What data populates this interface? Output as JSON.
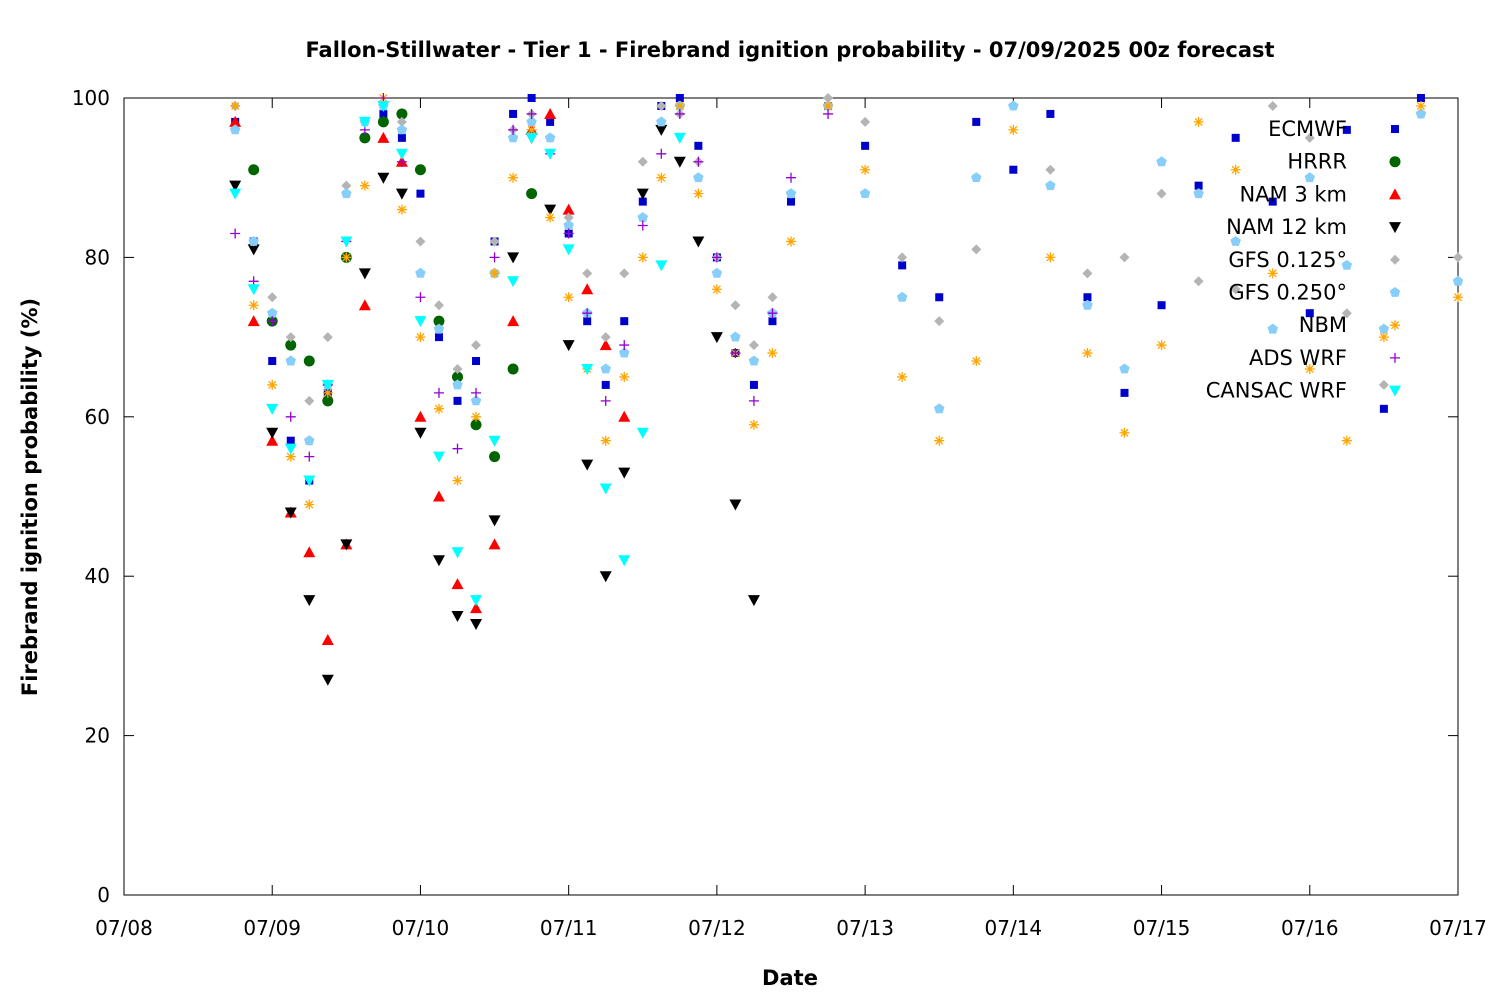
{
  "chart_data": {
    "type": "scatter",
    "title": "Fallon-Stillwater - Tier 1 - Firebrand ignition probability - 07/09/2025 00z forecast",
    "xlabel": "Date",
    "ylabel": "Firebrand ignition probability (%)",
    "x_start": "2025-07-08T00:00",
    "xlim": [
      "07/08",
      "07/17"
    ],
    "ylim": [
      0,
      100
    ],
    "x_tick_labels": [
      "07/08",
      "07/09",
      "07/10",
      "07/11",
      "07/12",
      "07/13",
      "07/14",
      "07/15",
      "07/16",
      "07/17"
    ],
    "y_tick_labels": [
      "0",
      "20",
      "40",
      "60",
      "80",
      "100"
    ],
    "grid": false,
    "legend_position": "top-right",
    "series": [
      {
        "name": "ECMWF",
        "color": "#0000cc",
        "marker": "square",
        "x": [
          "07/08 18:00",
          "07/08 21:00",
          "07/09 00:00",
          "07/09 03:00",
          "07/09 06:00",
          "07/09 09:00",
          "07/09 12:00",
          "07/09 15:00",
          "07/09 18:00",
          "07/09 21:00",
          "07/10 00:00",
          "07/10 03:00",
          "07/10 06:00",
          "07/10 09:00",
          "07/10 12:00",
          "07/10 15:00",
          "07/10 18:00",
          "07/10 21:00",
          "07/11 00:00",
          "07/11 03:00",
          "07/11 06:00",
          "07/11 09:00",
          "07/11 12:00",
          "07/11 15:00",
          "07/11 18:00",
          "07/11 21:00",
          "07/12 00:00",
          "07/12 03:00",
          "07/12 06:00",
          "07/12 09:00",
          "07/12 12:00",
          "07/12 18:00",
          "07/13 00:00",
          "07/13 06:00",
          "07/13 12:00",
          "07/13 18:00",
          "07/14 00:00",
          "07/14 06:00",
          "07/14 12:00",
          "07/14 18:00",
          "07/15 00:00",
          "07/15 06:00",
          "07/15 12:00",
          "07/15 18:00",
          "07/16 00:00",
          "07/16 06:00",
          "07/16 12:00",
          "07/16 18:00"
        ],
        "y": [
          97,
          82,
          67,
          57,
          52,
          63,
          80,
          95,
          98,
          95,
          88,
          70,
          62,
          67,
          82,
          98,
          100,
          97,
          83,
          72,
          64,
          72,
          87,
          99,
          100,
          94,
          80,
          68,
          64,
          72,
          87,
          99,
          94,
          79,
          75,
          97,
          91,
          98,
          75,
          63,
          74,
          89,
          95,
          87,
          73,
          96,
          61,
          100
        ]
      },
      {
        "name": "HRRR",
        "color": "#006400",
        "marker": "circle",
        "x": [
          "07/08 21:00",
          "07/09 00:00",
          "07/09 03:00",
          "07/09 06:00",
          "07/09 09:00",
          "07/09 12:00",
          "07/09 15:00",
          "07/09 18:00",
          "07/09 21:00",
          "07/10 00:00",
          "07/10 03:00",
          "07/10 06:00",
          "07/10 09:00",
          "07/10 12:00",
          "07/10 15:00",
          "07/10 18:00"
        ],
        "y": [
          91,
          72,
          69,
          67,
          62,
          80,
          95,
          97,
          98,
          91,
          72,
          65,
          59,
          55,
          66,
          88
        ]
      },
      {
        "name": "NAM 3 km",
        "color": "#ff0000",
        "marker": "triangle-up",
        "x": [
          "07/08 18:00",
          "07/08 21:00",
          "07/09 00:00",
          "07/09 03:00",
          "07/09 06:00",
          "07/09 09:00",
          "07/09 12:00",
          "07/09 15:00",
          "07/09 18:00",
          "07/09 21:00",
          "07/10 00:00",
          "07/10 03:00",
          "07/10 06:00",
          "07/10 09:00",
          "07/10 12:00",
          "07/10 15:00",
          "07/10 18:00",
          "07/10 21:00",
          "07/11 00:00",
          "07/11 03:00",
          "07/11 06:00",
          "07/11 09:00"
        ],
        "y": [
          97,
          72,
          57,
          48,
          43,
          32,
          44,
          74,
          95,
          92,
          60,
          50,
          39,
          36,
          44,
          72,
          96,
          98,
          86,
          76,
          69,
          60
        ]
      },
      {
        "name": "NAM 12 km",
        "color": "#000000",
        "marker": "triangle-down",
        "x": [
          "07/08 18:00",
          "07/08 21:00",
          "07/09 00:00",
          "07/09 03:00",
          "07/09 06:00",
          "07/09 09:00",
          "07/09 12:00",
          "07/09 15:00",
          "07/09 18:00",
          "07/09 21:00",
          "07/10 00:00",
          "07/10 03:00",
          "07/10 06:00",
          "07/10 09:00",
          "07/10 12:00",
          "07/10 15:00",
          "07/10 18:00",
          "07/10 21:00",
          "07/11 00:00",
          "07/11 03:00",
          "07/11 06:00",
          "07/11 09:00",
          "07/11 12:00",
          "07/11 15:00",
          "07/11 18:00",
          "07/11 21:00",
          "07/12 00:00",
          "07/12 03:00",
          "07/12 06:00"
        ],
        "y": [
          89,
          81,
          58,
          48,
          37,
          27,
          44,
          78,
          90,
          88,
          58,
          42,
          35,
          34,
          47,
          80,
          95,
          86,
          69,
          54,
          40,
          53,
          88,
          96,
          92,
          82,
          70,
          49,
          37
        ]
      },
      {
        "name": "GFS 0.125°",
        "color": "#b4b4b4",
        "marker": "diamond",
        "x": [
          "07/08 18:00",
          "07/08 21:00",
          "07/09 00:00",
          "07/09 03:00",
          "07/09 06:00",
          "07/09 09:00",
          "07/09 12:00",
          "07/09 15:00",
          "07/09 18:00",
          "07/09 21:00",
          "07/10 00:00",
          "07/10 03:00",
          "07/10 06:00",
          "07/10 09:00",
          "07/10 12:00",
          "07/10 15:00",
          "07/10 18:00",
          "07/10 21:00",
          "07/11 00:00",
          "07/11 03:00",
          "07/11 06:00",
          "07/11 09:00",
          "07/11 12:00",
          "07/11 15:00",
          "07/11 18:00",
          "07/11 21:00",
          "07/12 00:00",
          "07/12 03:00",
          "07/12 06:00",
          "07/12 09:00",
          "07/12 12:00",
          "07/12 18:00",
          "07/13 00:00",
          "07/13 06:00",
          "07/13 12:00",
          "07/13 18:00",
          "07/14 00:00",
          "07/14 06:00",
          "07/14 12:00",
          "07/14 18:00",
          "07/15 00:00",
          "07/15 06:00",
          "07/15 12:00",
          "07/15 18:00",
          "07/16 00:00",
          "07/16 06:00",
          "07/16 12:00",
          "07/16 18:00",
          "07/17 00:00"
        ],
        "y": [
          99,
          82,
          75,
          70,
          62,
          70,
          89,
          97,
          99,
          97,
          82,
          74,
          66,
          69,
          82,
          96,
          98,
          95,
          85,
          78,
          70,
          78,
          92,
          99,
          98,
          92,
          80,
          74,
          69,
          75,
          88,
          100,
          97,
          80,
          72,
          81,
          99,
          91,
          78,
          80,
          88,
          77,
          76,
          99,
          95,
          73,
          64,
          98,
          80
        ]
      },
      {
        "name": "GFS 0.250°",
        "color": "#87cefa",
        "marker": "pentagon",
        "x": [
          "07/08 18:00",
          "07/08 21:00",
          "07/09 00:00",
          "07/09 03:00",
          "07/09 06:00",
          "07/09 09:00",
          "07/09 12:00",
          "07/09 15:00",
          "07/09 18:00",
          "07/09 21:00",
          "07/10 00:00",
          "07/10 03:00",
          "07/10 06:00",
          "07/10 09:00",
          "07/10 12:00",
          "07/10 15:00",
          "07/10 18:00",
          "07/10 21:00",
          "07/11 00:00",
          "07/11 03:00",
          "07/11 06:00",
          "07/11 09:00",
          "07/11 12:00",
          "07/11 15:00",
          "07/11 18:00",
          "07/11 21:00",
          "07/12 00:00",
          "07/12 03:00",
          "07/12 06:00",
          "07/12 09:00",
          "07/12 12:00",
          "07/12 18:00",
          "07/13 00:00",
          "07/13 06:00",
          "07/13 12:00",
          "07/13 18:00",
          "07/14 00:00",
          "07/14 06:00",
          "07/14 12:00",
          "07/14 18:00",
          "07/15 00:00",
          "07/15 06:00",
          "07/15 12:00",
          "07/15 18:00",
          "07/16 00:00",
          "07/16 06:00",
          "07/16 12:00",
          "07/16 18:00",
          "07/17 00:00"
        ],
        "y": [
          96,
          82,
          73,
          67,
          57,
          64,
          88,
          97,
          99,
          96,
          78,
          71,
          64,
          62,
          78,
          95,
          97,
          95,
          84,
          73,
          66,
          68,
          85,
          97,
          99,
          90,
          78,
          70,
          67,
          73,
          88,
          99,
          88,
          75,
          61,
          90,
          99,
          89,
          74,
          66,
          92,
          88,
          82,
          71,
          90,
          79,
          71,
          98,
          77
        ]
      },
      {
        "name": "NBM",
        "color": "#ffa500",
        "marker": "asterisk",
        "x": [
          "07/08 18:00",
          "07/08 21:00",
          "07/09 00:00",
          "07/09 03:00",
          "07/09 06:00",
          "07/09 09:00",
          "07/09 12:00",
          "07/09 15:00",
          "07/09 18:00",
          "07/09 21:00",
          "07/10 00:00",
          "07/10 03:00",
          "07/10 06:00",
          "07/10 09:00",
          "07/10 12:00",
          "07/10 15:00",
          "07/10 18:00",
          "07/10 21:00",
          "07/11 00:00",
          "07/11 03:00",
          "07/11 06:00",
          "07/11 09:00",
          "07/11 12:00",
          "07/11 15:00",
          "07/11 18:00",
          "07/11 21:00",
          "07/12 00:00",
          "07/12 03:00",
          "07/12 06:00",
          "07/12 09:00",
          "07/12 12:00",
          "07/12 18:00",
          "07/13 00:00",
          "07/13 06:00",
          "07/13 12:00",
          "07/13 18:00",
          "07/14 00:00",
          "07/14 06:00",
          "07/14 12:00",
          "07/14 18:00",
          "07/15 00:00",
          "07/15 06:00",
          "07/15 12:00",
          "07/15 18:00",
          "07/16 00:00",
          "07/16 06:00",
          "07/16 12:00",
          "07/16 18:00",
          "07/17 00:00"
        ],
        "y": [
          99,
          74,
          64,
          55,
          49,
          63,
          80,
          89,
          100,
          86,
          70,
          61,
          52,
          60,
          78,
          90,
          96,
          85,
          75,
          66,
          57,
          65,
          80,
          90,
          99,
          88,
          76,
          68,
          59,
          68,
          82,
          99,
          91,
          65,
          57,
          67,
          96,
          80,
          68,
          58,
          69,
          97,
          91,
          78,
          66,
          57,
          70,
          99,
          75
        ]
      },
      {
        "name": "ADS WRF",
        "color": "#9400d3",
        "marker": "plus",
        "x": [
          "07/08 18:00",
          "07/08 21:00",
          "07/09 00:00",
          "07/09 03:00",
          "07/09 06:00",
          "07/09 09:00",
          "07/09 12:00",
          "07/09 15:00",
          "07/09 18:00",
          "07/09 21:00",
          "07/10 00:00",
          "07/10 03:00",
          "07/10 06:00",
          "07/10 09:00",
          "07/10 12:00",
          "07/10 15:00",
          "07/10 18:00",
          "07/10 21:00",
          "07/11 00:00",
          "07/11 03:00",
          "07/11 06:00",
          "07/11 09:00",
          "07/11 12:00",
          "07/11 15:00",
          "07/11 18:00",
          "07/11 21:00",
          "07/12 00:00",
          "07/12 03:00",
          "07/12 06:00",
          "07/12 09:00",
          "07/12 12:00",
          "07/12 18:00"
        ],
        "y": [
          83,
          77,
          72,
          60,
          55,
          64,
          82,
          96,
          100,
          92,
          75,
          63,
          56,
          63,
          80,
          96,
          98,
          93,
          83,
          73,
          62,
          69,
          84,
          93,
          98,
          92,
          80,
          68,
          62,
          73,
          90,
          98
        ]
      },
      {
        "name": "CANSAC WRF",
        "color": "#00ffff",
        "marker": "triangle-down",
        "x": [
          "07/08 18:00",
          "07/08 21:00",
          "07/09 00:00",
          "07/09 03:00",
          "07/09 06:00",
          "07/09 09:00",
          "07/09 12:00",
          "07/09 15:00",
          "07/09 18:00",
          "07/09 21:00",
          "07/10 00:00",
          "07/10 03:00",
          "07/10 06:00",
          "07/10 09:00",
          "07/10 12:00",
          "07/10 15:00",
          "07/10 18:00",
          "07/10 21:00",
          "07/11 00:00",
          "07/11 03:00",
          "07/11 06:00",
          "07/11 09:00",
          "07/11 12:00",
          "07/11 15:00",
          "07/11 18:00"
        ],
        "y": [
          88,
          76,
          61,
          56,
          52,
          64,
          82,
          97,
          99,
          93,
          72,
          55,
          43,
          37,
          57,
          77,
          95,
          93,
          81,
          66,
          51,
          42,
          58,
          79,
          95
        ]
      }
    ]
  }
}
